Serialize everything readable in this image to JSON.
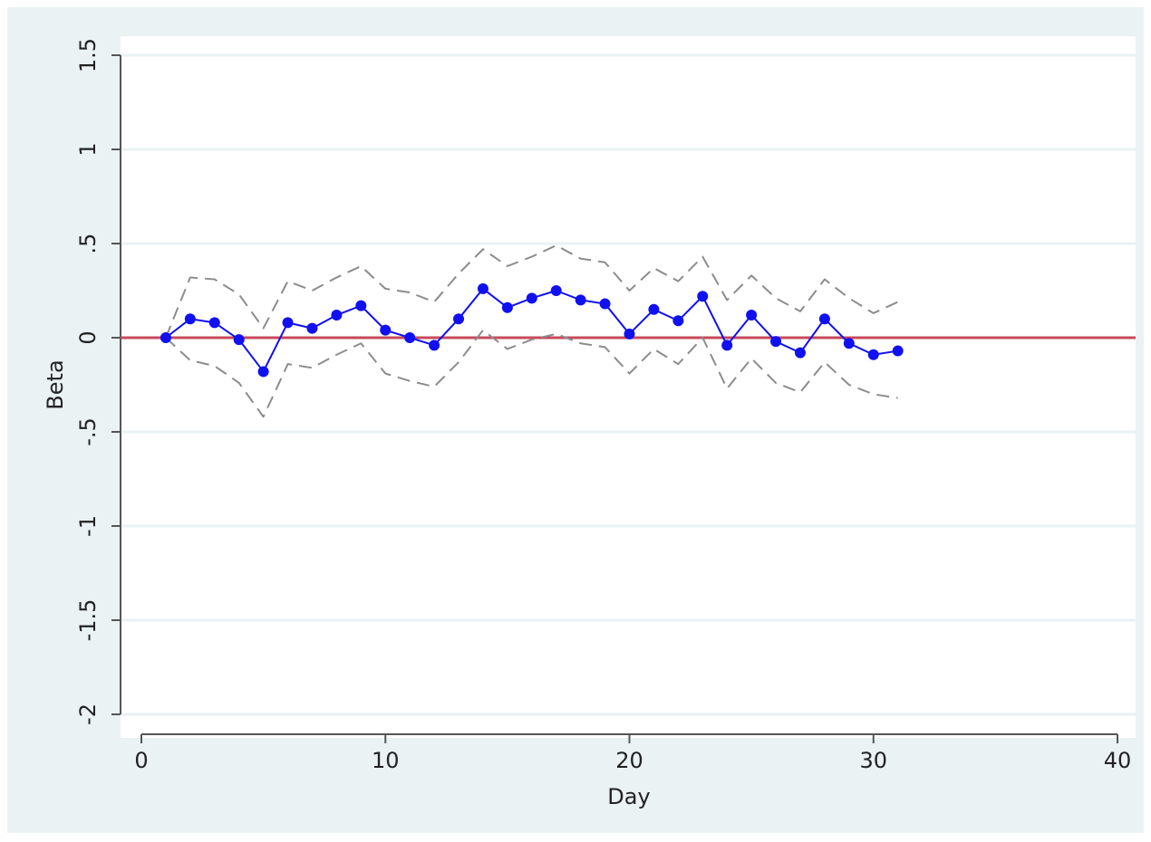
{
  "chart_data": {
    "type": "line",
    "x_label": "Day",
    "y_label": "Beta",
    "x": [
      1,
      2,
      3,
      4,
      5,
      6,
      7,
      8,
      9,
      10,
      11,
      12,
      13,
      14,
      15,
      16,
      17,
      18,
      19,
      20,
      21,
      22,
      23,
      24,
      25,
      26,
      27,
      28,
      29,
      30,
      31
    ],
    "series": [
      {
        "color": "#1010f0",
        "style": "solid",
        "markers": true,
        "values": [
          0,
          0.1,
          0.08,
          -0.01,
          -0.18,
          0.08,
          0.05,
          0.12,
          0.17,
          0.04,
          0.0,
          -0.04,
          0.1,
          0.26,
          0.16,
          0.21,
          0.25,
          0.2,
          0.18,
          0.02,
          0.15,
          0.09,
          0.22,
          -0.04,
          0.12,
          -0.02,
          -0.08,
          0.1,
          -0.03,
          -0.09,
          -0.07
        ]
      },
      {
        "color": "#8c8c8c",
        "style": "dashed",
        "markers": false,
        "values": [
          0,
          0.32,
          0.31,
          0.23,
          0.05,
          0.3,
          0.25,
          0.32,
          0.38,
          0.26,
          0.24,
          0.19,
          0.34,
          0.47,
          0.38,
          0.43,
          0.49,
          0.42,
          0.4,
          0.25,
          0.37,
          0.3,
          0.43,
          0.2,
          0.33,
          0.21,
          0.14,
          0.31,
          0.21,
          0.13,
          0.19
        ]
      },
      {
        "color": "#8c8c8c",
        "style": "dashed",
        "markers": false,
        "values": [
          0,
          -0.12,
          -0.15,
          -0.24,
          -0.42,
          -0.14,
          -0.16,
          -0.09,
          -0.03,
          -0.19,
          -0.23,
          -0.26,
          -0.13,
          0.04,
          -0.06,
          -0.01,
          0.02,
          -0.03,
          -0.05,
          -0.19,
          -0.06,
          -0.14,
          0,
          -0.27,
          -0.11,
          -0.24,
          -0.29,
          -0.13,
          -0.25,
          -0.3,
          -0.32
        ]
      }
    ],
    "reference_line": {
      "value": 0,
      "color": "#c8485a"
    },
    "xlim": [
      0,
      40
    ],
    "xticks": [
      0,
      10,
      20,
      30,
      40
    ],
    "ylim": [
      -2,
      1.5
    ],
    "yticks": [
      1.5,
      1,
      {
        "value": 0.5,
        "label": ".5"
      },
      0,
      {
        "value": -0.5,
        "label": "-.5"
      },
      -1,
      -1.5,
      -2
    ],
    "grid": true
  }
}
